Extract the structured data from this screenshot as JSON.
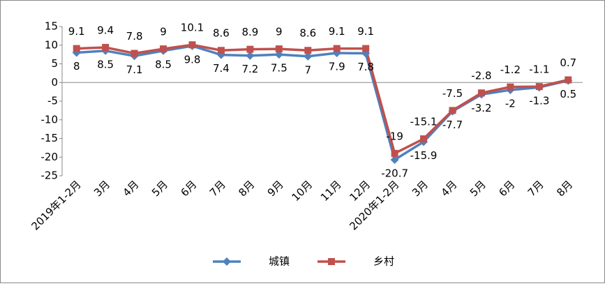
{
  "chart_data": {
    "type": "line",
    "categories": [
      "2019年1-2月",
      "3月",
      "4月",
      "5月",
      "6月",
      "7月",
      "8月",
      "9月",
      "10月",
      "11月",
      "12月",
      "2020年1-2月",
      "3月",
      "4月",
      "5月",
      "6月",
      "7月",
      "8月"
    ],
    "series": [
      {
        "name": "城镇",
        "color": "#4f81bd",
        "values": [
          8,
          8.5,
          7.1,
          8.5,
          9.8,
          7.4,
          7.2,
          7.5,
          7,
          7.9,
          7.8,
          -20.7,
          -15.9,
          -7.7,
          -3.2,
          -2,
          -1.3,
          0.5
        ]
      },
      {
        "name": "乡村",
        "color": "#c0504d",
        "values": [
          9.1,
          9.4,
          7.8,
          9,
          10.1,
          8.6,
          8.9,
          9,
          8.6,
          9.1,
          9.1,
          -19,
          -15.1,
          -7.5,
          -2.8,
          -1.2,
          -1.1,
          0.7
        ]
      }
    ],
    "ylim": [
      -25,
      15
    ],
    "yticks": [
      -25,
      -20,
      -15,
      -10,
      -5,
      0,
      5,
      10,
      15
    ],
    "legend": "bottom"
  }
}
